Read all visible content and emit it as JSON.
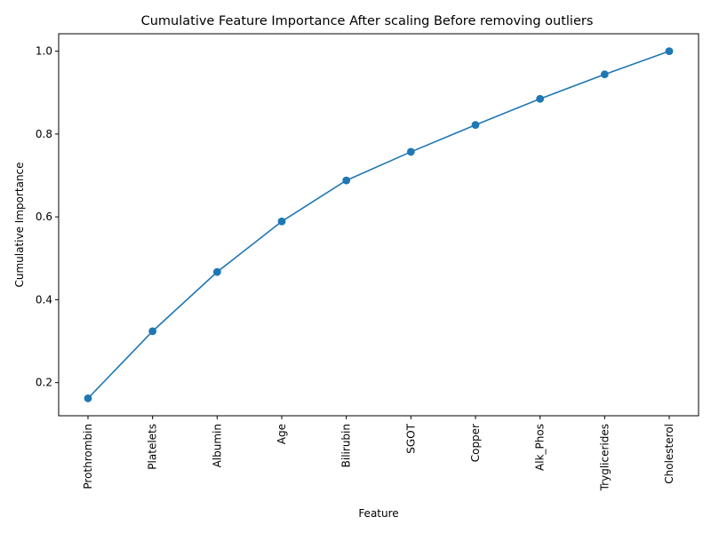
{
  "chart_data": {
    "type": "line",
    "title": "Cumulative Feature Importance After scaling Before removing outliers",
    "xlabel": "Feature",
    "ylabel": "Cumulative Importance",
    "categories": [
      "Prothrombin",
      "Platelets",
      "Albumin",
      "Age",
      "Bilirubin",
      "SGOT",
      "Copper",
      "Alk_Phos",
      "Tryglicerides",
      "Cholesterol"
    ],
    "values": [
      0.162,
      0.324,
      0.467,
      0.589,
      0.688,
      0.757,
      0.822,
      0.885,
      0.944,
      1.0
    ],
    "ylim": [
      0.12,
      1.042
    ],
    "yticks": [
      "0.2",
      "0.4",
      "0.6",
      "0.8",
      "1.0"
    ],
    "grid": false,
    "legend": "none",
    "line_color": "#1f77b4",
    "marker": "circle"
  }
}
